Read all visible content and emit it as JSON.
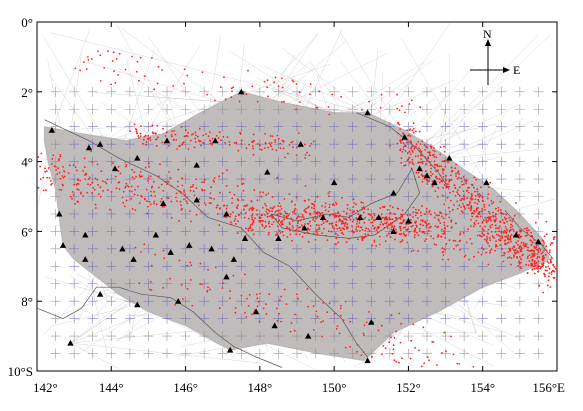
{
  "map": {
    "extent": {
      "lon_min": 142,
      "lon_max": 156,
      "lat_min": -10,
      "lat_max": 0
    },
    "x_ticks": [
      {
        "lon": 142,
        "label": "142°"
      },
      {
        "lon": 144,
        "label": "144°"
      },
      {
        "lon": 146,
        "label": "146°"
      },
      {
        "lon": 148,
        "label": "148°"
      },
      {
        "lon": 150,
        "label": "150°"
      },
      {
        "lon": 152,
        "label": "152°"
      },
      {
        "lon": 154,
        "label": "154°"
      },
      {
        "lon": 156,
        "label": "156°E"
      }
    ],
    "y_ticks": [
      {
        "lat": 0,
        "label": "0°"
      },
      {
        "lat": -2,
        "label": "2°"
      },
      {
        "lat": -4,
        "label": "4°"
      },
      {
        "lat": -6,
        "label": "6°"
      },
      {
        "lat": -8,
        "label": "8°"
      },
      {
        "lat": -10,
        "label": "10°S"
      }
    ],
    "compass": {
      "north": "N",
      "east": "E"
    },
    "colors": {
      "events": "#ff2020",
      "stations": "#000000",
      "rays": "#c0bcbc",
      "ray_lines": "#b5b5b5",
      "grid_cross": "#888888",
      "grid_cross_inner": "#6868b0",
      "coastline": "#555555"
    },
    "stations": [
      [
        142.4,
        -3.1
      ],
      [
        143.4,
        -3.6
      ],
      [
        143.7,
        -3.5
      ],
      [
        144.1,
        -4.2
      ],
      [
        144.7,
        -3.9
      ],
      [
        145.5,
        -3.4
      ],
      [
        146.3,
        -4.1
      ],
      [
        146.8,
        -3.4
      ],
      [
        147.5,
        -2.0
      ],
      [
        148.2,
        -4.3
      ],
      [
        149.1,
        -3.5
      ],
      [
        150.0,
        -4.6
      ],
      [
        150.9,
        -2.6
      ],
      [
        151.9,
        -3.3
      ],
      [
        152.3,
        -4.2
      ],
      [
        152.5,
        -4.4
      ],
      [
        153.1,
        -3.9
      ],
      [
        154.1,
        -4.6
      ],
      [
        154.9,
        -6.1
      ],
      [
        155.5,
        -6.3
      ],
      [
        145.4,
        -5.2
      ],
      [
        146.3,
        -5.1
      ],
      [
        147.1,
        -5.5
      ],
      [
        147.6,
        -6.2
      ],
      [
        148.5,
        -6.2
      ],
      [
        149.2,
        -5.9
      ],
      [
        150.7,
        -5.6
      ],
      [
        151.2,
        -5.6
      ],
      [
        151.6,
        -6.0
      ],
      [
        152.0,
        -5.7
      ],
      [
        142.6,
        -5.5
      ],
      [
        142.7,
        -6.4
      ],
      [
        143.3,
        -6.1
      ],
      [
        144.3,
        -6.5
      ],
      [
        144.6,
        -6.8
      ],
      [
        145.2,
        -6.1
      ],
      [
        145.6,
        -6.6
      ],
      [
        146.1,
        -6.4
      ],
      [
        146.7,
        -6.5
      ],
      [
        147.3,
        -6.8
      ],
      [
        143.3,
        -6.8
      ],
      [
        143.7,
        -7.8
      ],
      [
        144.7,
        -8.1
      ],
      [
        145.8,
        -8.0
      ],
      [
        147.1,
        -7.3
      ],
      [
        147.9,
        -8.3
      ],
      [
        148.4,
        -8.7
      ],
      [
        149.3,
        -9.0
      ],
      [
        151.0,
        -8.6
      ],
      [
        150.9,
        -9.7
      ],
      [
        147.2,
        -9.4
      ],
      [
        142.9,
        -9.2
      ],
      [
        151.6,
        -4.9
      ],
      [
        152.7,
        -4.6
      ],
      [
        149.7,
        -5.6
      ]
    ],
    "coastlines": [
      [
        [
          142.2,
          -2.8
        ],
        [
          143.4,
          -3.4
        ],
        [
          144.2,
          -3.9
        ],
        [
          145.2,
          -4.4
        ],
        [
          145.9,
          -4.9
        ],
        [
          146.6,
          -5.6
        ],
        [
          147.5,
          -5.9
        ],
        [
          148.1,
          -6.6
        ],
        [
          148.8,
          -7.0
        ],
        [
          149.5,
          -7.8
        ],
        [
          150.2,
          -8.5
        ],
        [
          150.6,
          -9.2
        ],
        [
          150.9,
          -9.6
        ]
      ],
      [
        [
          142.0,
          -8.2
        ],
        [
          142.7,
          -8.5
        ],
        [
          143.2,
          -8.2
        ],
        [
          143.6,
          -7.6
        ],
        [
          144.2,
          -7.6
        ],
        [
          144.8,
          -7.8
        ],
        [
          145.6,
          -7.9
        ],
        [
          146.2,
          -8.3
        ],
        [
          146.8,
          -8.9
        ],
        [
          147.3,
          -9.3
        ],
        [
          147.9,
          -9.6
        ],
        [
          148.6,
          -9.9
        ]
      ],
      [
        [
          148.3,
          -5.5
        ],
        [
          149.0,
          -5.7
        ],
        [
          149.8,
          -5.5
        ],
        [
          150.4,
          -5.6
        ],
        [
          151.0,
          -5.2
        ],
        [
          151.7,
          -4.9
        ],
        [
          152.1,
          -4.2
        ],
        [
          152.3,
          -4.9
        ],
        [
          151.9,
          -5.5
        ],
        [
          151.1,
          -6.1
        ],
        [
          150.4,
          -6.2
        ],
        [
          149.5,
          -6.1
        ],
        [
          148.6,
          -5.9
        ],
        [
          148.3,
          -5.5
        ]
      ],
      [
        [
          150.6,
          -2.6
        ],
        [
          151.5,
          -3.0
        ],
        [
          152.2,
          -3.6
        ],
        [
          152.8,
          -4.3
        ],
        [
          153.1,
          -4.8
        ]
      ],
      [
        [
          154.6,
          -5.4
        ],
        [
          155.0,
          -5.9
        ],
        [
          155.6,
          -6.4
        ],
        [
          155.9,
          -6.8
        ]
      ]
    ],
    "ray_polygon": [
      [
        142.2,
        -3.0
      ],
      [
        143.2,
        -3.2
      ],
      [
        144.4,
        -3.4
      ],
      [
        145.4,
        -3.2
      ],
      [
        146.4,
        -2.6
      ],
      [
        147.5,
        -2.0
      ],
      [
        148.6,
        -2.3
      ],
      [
        150.0,
        -2.6
      ],
      [
        150.9,
        -2.6
      ],
      [
        151.9,
        -3.1
      ],
      [
        152.8,
        -3.7
      ],
      [
        153.6,
        -4.3
      ],
      [
        154.3,
        -4.8
      ],
      [
        155.0,
        -5.5
      ],
      [
        155.6,
        -6.2
      ],
      [
        155.8,
        -6.8
      ],
      [
        155.0,
        -7.2
      ],
      [
        154.0,
        -7.6
      ],
      [
        152.8,
        -8.3
      ],
      [
        151.6,
        -8.9
      ],
      [
        150.8,
        -9.7
      ],
      [
        149.6,
        -9.5
      ],
      [
        148.2,
        -9.2
      ],
      [
        147.2,
        -9.4
      ],
      [
        146.0,
        -8.7
      ],
      [
        145.0,
        -8.3
      ],
      [
        144.2,
        -7.8
      ],
      [
        143.6,
        -7.3
      ],
      [
        143.0,
        -6.8
      ],
      [
        142.7,
        -6.4
      ],
      [
        142.6,
        -5.6
      ],
      [
        142.5,
        -4.8
      ],
      [
        142.3,
        -4.0
      ],
      [
        142.2,
        -3.4
      ]
    ],
    "event_clusters": [
      {
        "kind": "band",
        "from": [
          142.0,
          -4.3
        ],
        "to": [
          156.0,
          -6.6
        ],
        "spread": 0.35,
        "count": 700
      },
      {
        "kind": "band",
        "from": [
          144.5,
          -3.2
        ],
        "to": [
          149.5,
          -3.6
        ],
        "spread": 0.15,
        "count": 160
      },
      {
        "kind": "band",
        "from": [
          151.8,
          -3.4
        ],
        "to": [
          156.0,
          -7.2
        ],
        "spread": 0.35,
        "count": 650
      },
      {
        "kind": "band",
        "from": [
          147.5,
          -5.6
        ],
        "to": [
          153.0,
          -5.8
        ],
        "spread": 0.25,
        "count": 420
      },
      {
        "kind": "scatter",
        "from": [
          143.0,
          -1.2
        ],
        "to": [
          152.5,
          -2.6
        ],
        "spread": 0.5,
        "count": 90
      },
      {
        "kind": "scatter",
        "from": [
          144.5,
          -7.0
        ],
        "to": [
          154.0,
          -9.8
        ],
        "spread": 0.7,
        "count": 160
      }
    ]
  }
}
